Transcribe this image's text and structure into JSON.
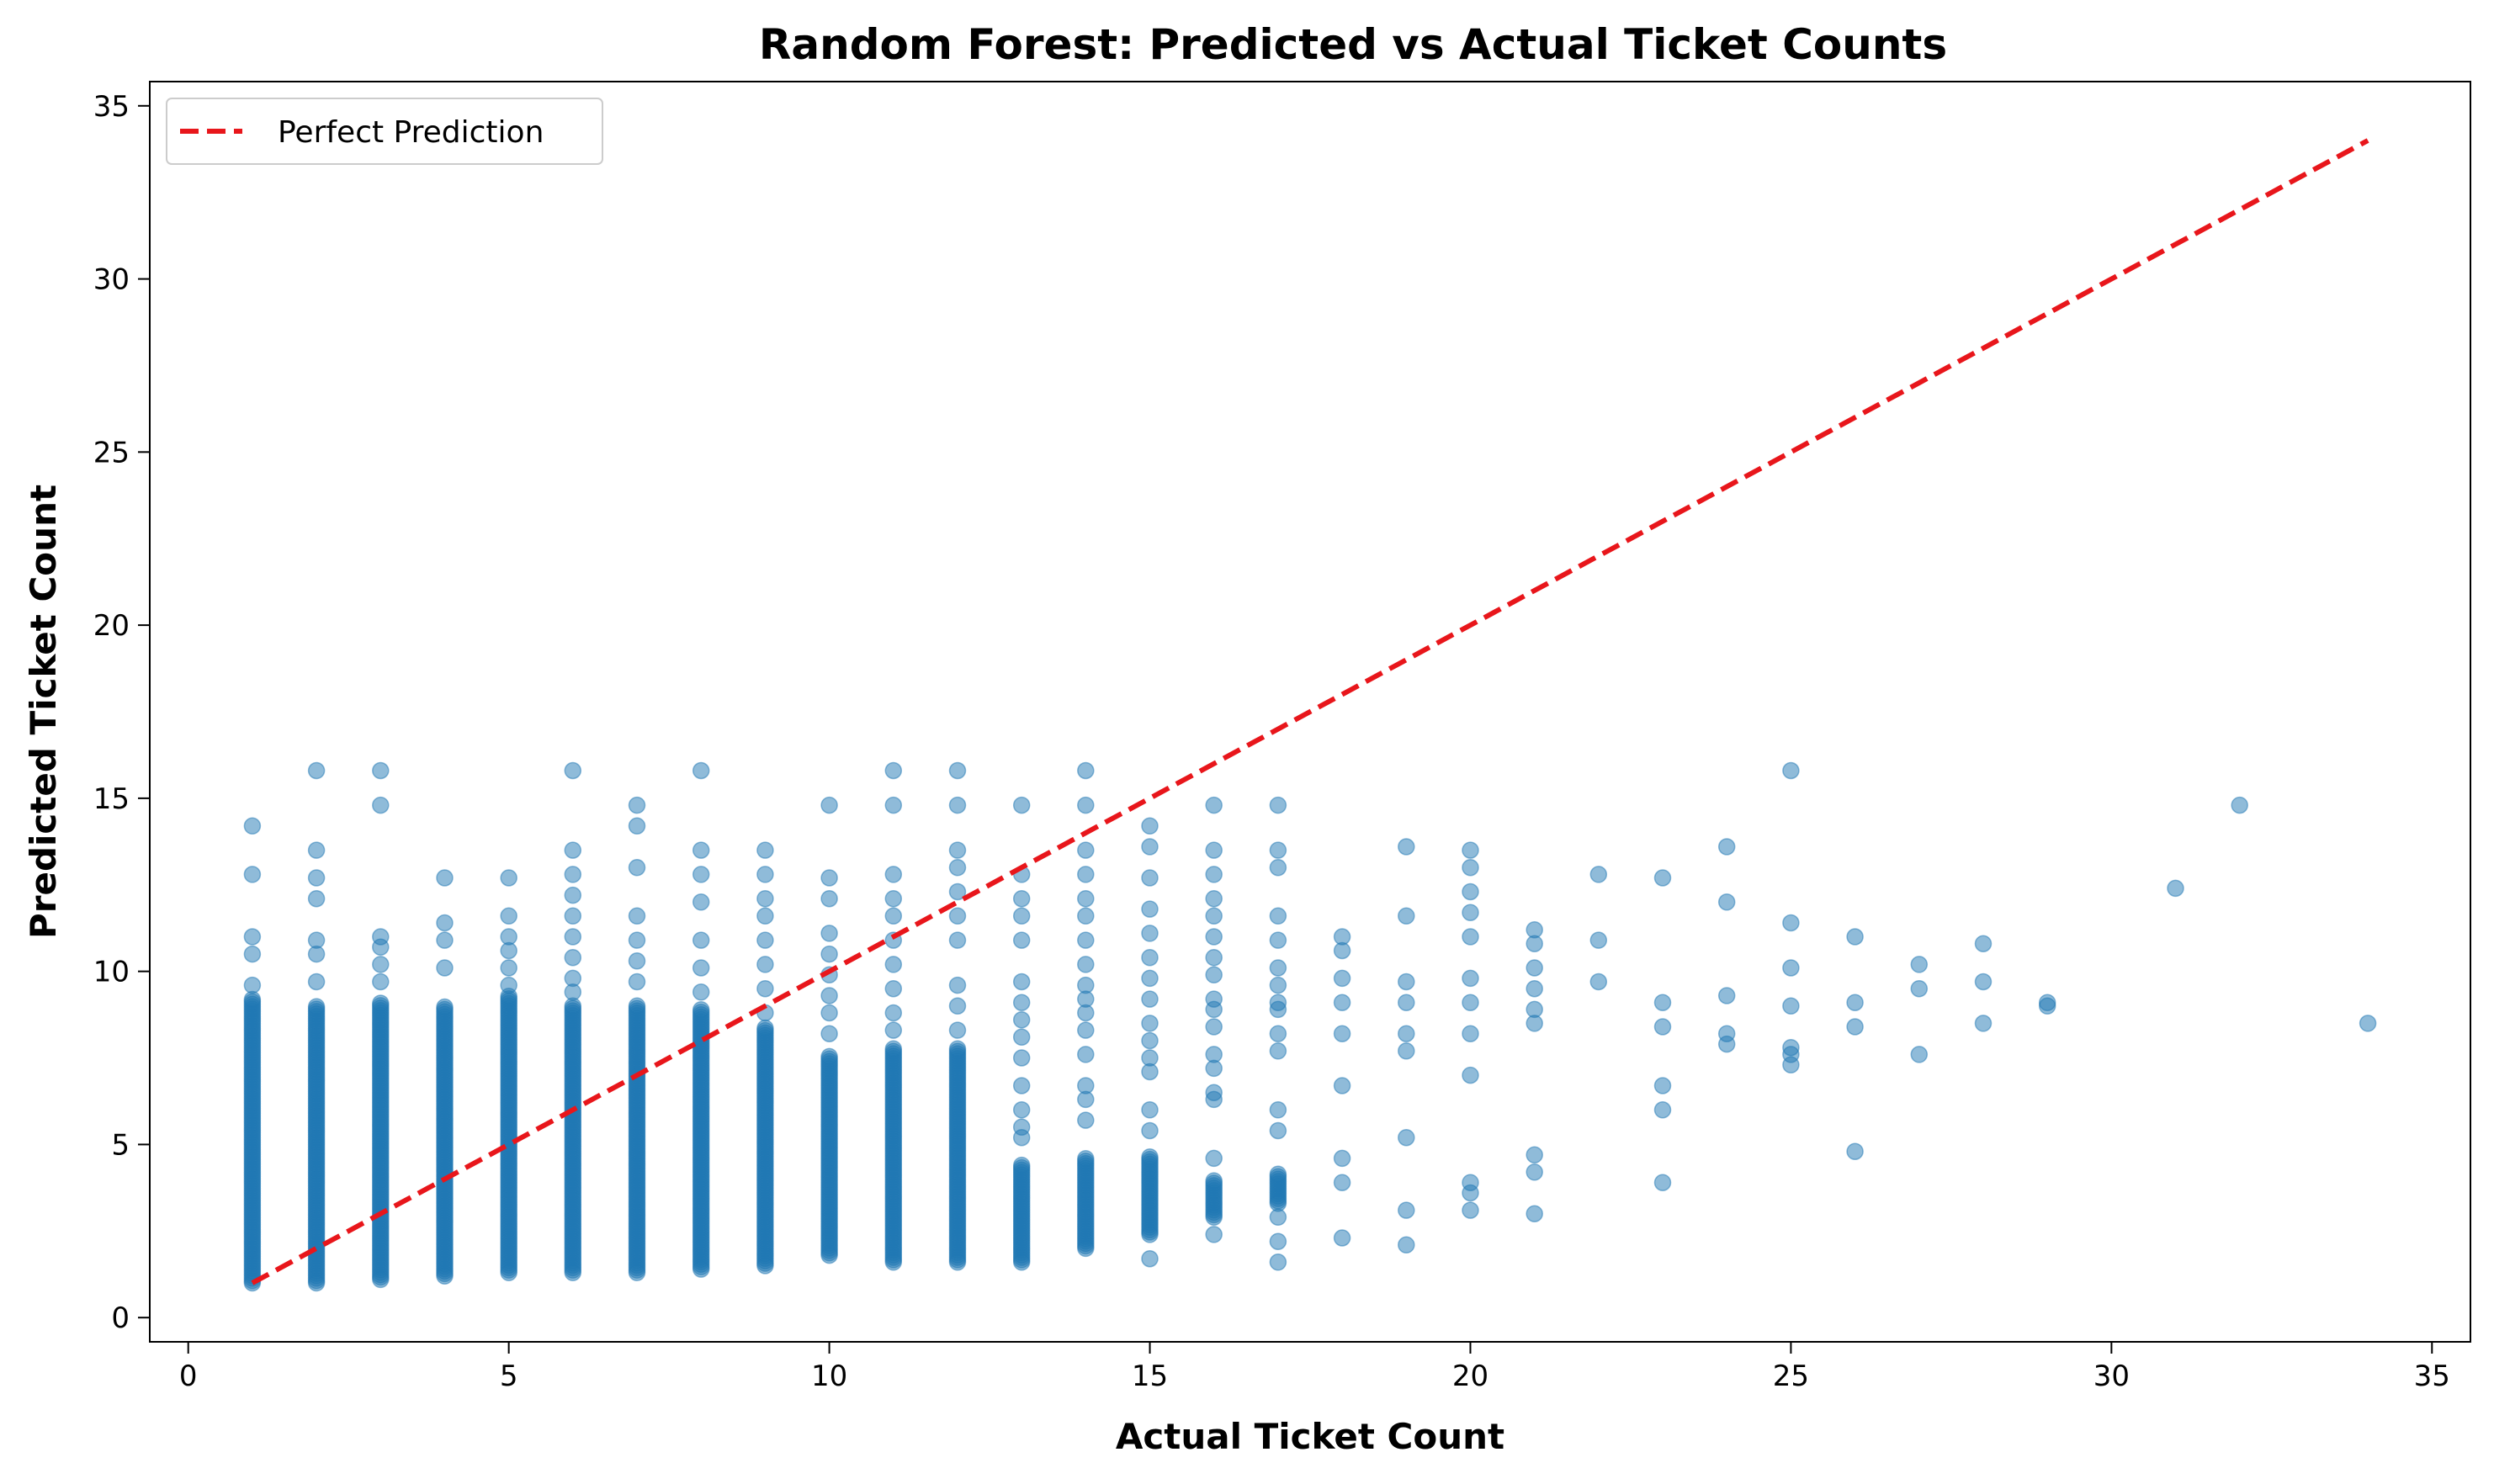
{
  "chart_data": {
    "type": "scatter",
    "title": "Random Forest: Predicted vs Actual Ticket Counts",
    "xlabel": "Actual Ticket Count",
    "ylabel": "Predicted Ticket Count",
    "xlim": [
      -0.6,
      35.6
    ],
    "ylim": [
      -0.7,
      35.7
    ],
    "xticks": [
      0,
      5,
      10,
      15,
      20,
      25,
      30,
      35
    ],
    "yticks": [
      0,
      5,
      10,
      15,
      20,
      25,
      30,
      35
    ],
    "grid": false,
    "legend_position": "top-left",
    "colors": {
      "points": "#1f77b4",
      "reference_line": "#e8161b"
    },
    "reference_line": {
      "name": "Perfect Prediction",
      "style": "dashed",
      "x": [
        1,
        34
      ],
      "y": [
        1,
        34
      ]
    },
    "columns": [
      {
        "x": 1,
        "dense": [
          1.0,
          9.2
        ],
        "extra": [
          9.6,
          10.5,
          11.0,
          12.8,
          14.2
        ]
      },
      {
        "x": 2,
        "dense": [
          1.0,
          9.0
        ],
        "extra": [
          9.7,
          10.5,
          10.9,
          12.1,
          12.7,
          13.5,
          15.8
        ]
      },
      {
        "x": 3,
        "dense": [
          1.1,
          9.1
        ],
        "extra": [
          9.7,
          10.2,
          10.7,
          11.0,
          14.8,
          15.8
        ]
      },
      {
        "x": 4,
        "dense": [
          1.2,
          9.0
        ],
        "extra": [
          10.1,
          10.9,
          11.4,
          12.7
        ]
      },
      {
        "x": 5,
        "dense": [
          1.3,
          9.3
        ],
        "extra": [
          9.6,
          10.1,
          10.6,
          11.0,
          11.6,
          12.7
        ]
      },
      {
        "x": 6,
        "dense": [
          1.3,
          9.0
        ],
        "extra": [
          9.4,
          9.8,
          10.4,
          11.0,
          11.6,
          12.2,
          12.8,
          13.5,
          15.8
        ]
      },
      {
        "x": 7,
        "dense": [
          1.3,
          9.0
        ],
        "extra": [
          9.7,
          10.3,
          10.9,
          11.6,
          13.0,
          14.2,
          14.8
        ]
      },
      {
        "x": 8,
        "dense": [
          1.4,
          8.9
        ],
        "extra": [
          9.4,
          10.1,
          10.9,
          12.0,
          12.8,
          13.5,
          15.8
        ]
      },
      {
        "x": 9,
        "dense": [
          1.5,
          8.4
        ],
        "extra": [
          8.8,
          9.5,
          10.2,
          10.9,
          11.6,
          12.1,
          12.8,
          13.5
        ]
      },
      {
        "x": 10,
        "dense": [
          1.8,
          7.6
        ],
        "extra": [
          8.2,
          8.8,
          9.3,
          9.9,
          10.5,
          11.1,
          12.1,
          12.7,
          14.8
        ]
      },
      {
        "x": 11,
        "dense": [
          1.6,
          7.8
        ],
        "extra": [
          8.3,
          8.8,
          9.5,
          10.2,
          10.9,
          11.6,
          12.1,
          12.8,
          14.8,
          15.8
        ]
      },
      {
        "x": 12,
        "dense": [
          1.6,
          7.8
        ],
        "extra": [
          8.3,
          9.0,
          9.6,
          10.9,
          11.6,
          12.3,
          13.0,
          13.5,
          14.8,
          15.8
        ]
      },
      {
        "x": 13,
        "dense": [
          1.6,
          4.4
        ],
        "extra": [
          5.2,
          5.5,
          6.0,
          6.7,
          7.5,
          8.1,
          8.6,
          9.1,
          9.7,
          10.9,
          11.6,
          12.1,
          12.8,
          14.8
        ]
      },
      {
        "x": 14,
        "dense": [
          2.0,
          4.6
        ],
        "extra": [
          5.7,
          6.3,
          6.7,
          7.6,
          8.3,
          8.8,
          9.2,
          9.6,
          10.2,
          10.9,
          11.6,
          12.1,
          12.8,
          13.5,
          14.8,
          15.8
        ]
      },
      {
        "x": 15,
        "dense": [
          2.4,
          4.7
        ],
        "extra": [
          1.7,
          5.4,
          6.0,
          7.1,
          7.5,
          8.0,
          8.5,
          9.2,
          9.8,
          10.4,
          11.1,
          11.8,
          12.7,
          13.6,
          14.2
        ]
      },
      {
        "x": 16,
        "dense": [
          2.9,
          4.0
        ],
        "extra": [
          2.4,
          4.6,
          6.3,
          6.5,
          7.2,
          7.6,
          8.4,
          8.9,
          9.2,
          9.9,
          10.4,
          11.0,
          11.6,
          12.1,
          12.8,
          13.5,
          14.8
        ]
      },
      {
        "x": 17,
        "dense": [
          3.3,
          4.2
        ],
        "extra": [
          1.6,
          2.2,
          2.9,
          5.4,
          6.0,
          7.7,
          8.2,
          8.9,
          9.1,
          9.6,
          10.1,
          10.9,
          11.6,
          13.0,
          13.5,
          14.8
        ]
      },
      {
        "x": 18,
        "dense": null,
        "extra": [
          2.3,
          3.9,
          4.6,
          6.7,
          8.2,
          9.1,
          9.8,
          10.6,
          11.0
        ]
      },
      {
        "x": 19,
        "dense": null,
        "extra": [
          2.1,
          3.1,
          5.2,
          7.7,
          8.2,
          9.1,
          9.7,
          11.6,
          13.6
        ]
      },
      {
        "x": 20,
        "dense": null,
        "extra": [
          3.1,
          3.6,
          3.9,
          7.0,
          8.2,
          9.1,
          9.8,
          11.0,
          11.7,
          12.3,
          13.0,
          13.5
        ]
      },
      {
        "x": 21,
        "dense": null,
        "extra": [
          3.0,
          4.2,
          4.7,
          8.5,
          8.9,
          9.5,
          10.1,
          10.8,
          11.2
        ]
      },
      {
        "x": 22,
        "dense": null,
        "extra": [
          9.7,
          10.9,
          12.8
        ]
      },
      {
        "x": 23,
        "dense": null,
        "extra": [
          3.9,
          6.0,
          6.7,
          8.4,
          9.1,
          12.7
        ]
      },
      {
        "x": 24,
        "dense": null,
        "extra": [
          7.9,
          8.2,
          9.3,
          12.0,
          13.6
        ]
      },
      {
        "x": 25,
        "dense": null,
        "extra": [
          7.3,
          7.6,
          7.8,
          9.0,
          10.1,
          11.4,
          15.8
        ]
      },
      {
        "x": 26,
        "dense": null,
        "extra": [
          4.8,
          8.4,
          9.1,
          11.0
        ]
      },
      {
        "x": 27,
        "dense": null,
        "extra": [
          7.6,
          9.5,
          10.2
        ]
      },
      {
        "x": 28,
        "dense": null,
        "extra": [
          8.5,
          9.7,
          10.8
        ]
      },
      {
        "x": 29,
        "dense": null,
        "extra": [
          9.0,
          9.1
        ]
      },
      {
        "x": 31,
        "dense": null,
        "extra": [
          12.4
        ]
      },
      {
        "x": 32,
        "dense": null,
        "extra": [
          14.8
        ]
      },
      {
        "x": 34,
        "dense": null,
        "extra": [
          8.5
        ]
      }
    ]
  }
}
